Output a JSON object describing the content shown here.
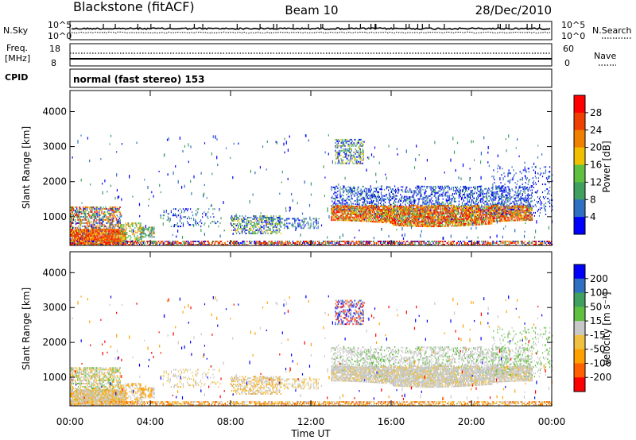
{
  "header": {
    "station": "Blackstone (fitACF)",
    "beam": "Beam 10",
    "date": "28/Dec/2010"
  },
  "noise_panel": {
    "left_label": "N.Sky",
    "left_ticks": [
      "10^5",
      "10^0"
    ],
    "right_label": "N.Search",
    "right_ticks": [
      "10^5",
      "10^0"
    ]
  },
  "freq_panel": {
    "left_label_1": "Freq.",
    "left_label_2": "[MHz]",
    "left_ticks": [
      "18",
      "8"
    ],
    "right_label": "Nave",
    "right_ticks": [
      "60",
      "0"
    ]
  },
  "cpid": {
    "label": "CPID",
    "value": "normal (fast stereo) 153"
  },
  "colors": {
    "power": [
      "#0000ff",
      "#3070c0",
      "#40a060",
      "#60c040",
      "#f0c000",
      "#f08000",
      "#f04000",
      "#ff0000"
    ],
    "velocity": [
      "#ff0000",
      "#ff6000",
      "#ffa000",
      "#f0c040",
      "#c8c8c8",
      "#60c040",
      "#40a060",
      "#3070c0",
      "#0000ff"
    ]
  },
  "chart_data": [
    {
      "type": "heatmap",
      "name": "power",
      "ylabel": "Slant Range [km]",
      "yticks": [
        1000,
        2000,
        3000,
        4000
      ],
      "ylim": [
        180,
        4600
      ],
      "xlim": [
        0,
        24
      ],
      "xticks": [
        "00:00",
        "04:00",
        "08:00",
        "12:00",
        "16:00",
        "20:00",
        "00:00"
      ],
      "colorbar": {
        "label": "Power [dB]",
        "ticks": [
          "4",
          "8",
          "12",
          "16",
          "20",
          "24",
          "28"
        ],
        "range": [
          0,
          30
        ]
      }
    },
    {
      "type": "heatmap",
      "name": "velocity",
      "ylabel": "Slant Range [km]",
      "yticks": [
        1000,
        2000,
        3000,
        4000
      ],
      "ylim": [
        180,
        4600
      ],
      "xlim": [
        0,
        24
      ],
      "xticks": [
        "00:00",
        "04:00",
        "08:00",
        "12:00",
        "16:00",
        "20:00",
        "00:00"
      ],
      "xlabel": "Time UT",
      "colorbar": {
        "label": "Velocity [m s⁻¹]",
        "ticks": [
          "200",
          "100",
          "50",
          "15",
          "-15",
          "-50",
          "-100",
          "-200"
        ],
        "range": [
          -250,
          250
        ]
      }
    }
  ]
}
